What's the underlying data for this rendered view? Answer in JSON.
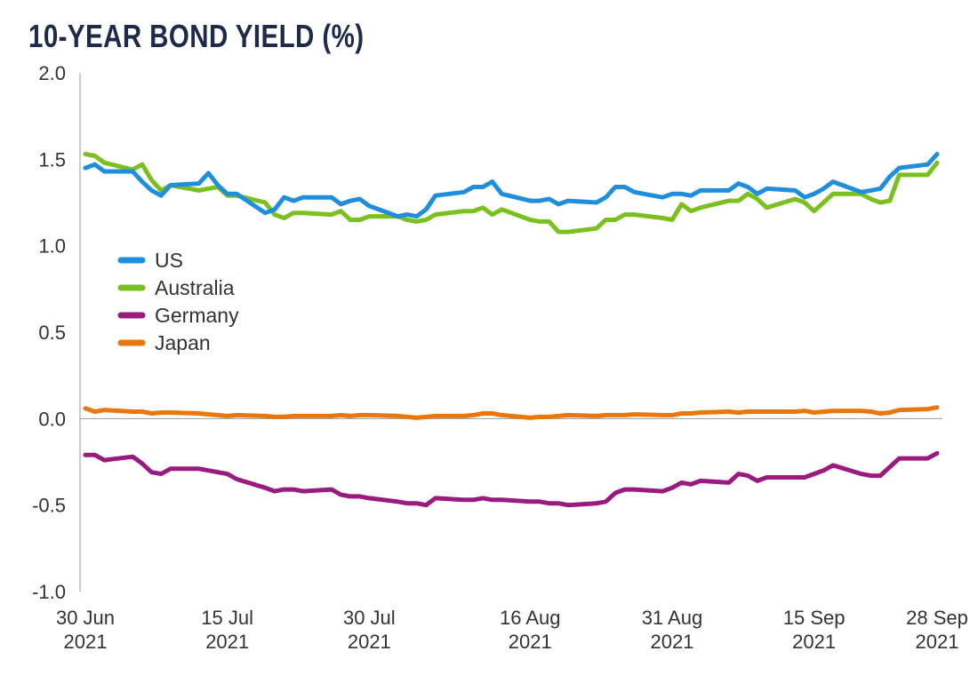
{
  "chart_data": {
    "type": "line",
    "title": "10-YEAR BOND YIELD (%)",
    "xlabel": "",
    "ylabel": "",
    "ylim": [
      -1.0,
      2.0
    ],
    "yticks": [
      "2.0",
      "1.5",
      "1.0",
      "0.5",
      "0.0",
      "-0.5",
      "-1.0"
    ],
    "ytick_values": [
      2.0,
      1.5,
      1.0,
      0.5,
      0.0,
      -0.5,
      -1.0
    ],
    "grid": false,
    "legend_position": "left-middle",
    "x": [
      "2021-06-30",
      "2021-07-01",
      "2021-07-02",
      "2021-07-05",
      "2021-07-06",
      "2021-07-07",
      "2021-07-08",
      "2021-07-09",
      "2021-07-12",
      "2021-07-13",
      "2021-07-14",
      "2021-07-15",
      "2021-07-16",
      "2021-07-19",
      "2021-07-20",
      "2021-07-21",
      "2021-07-22",
      "2021-07-23",
      "2021-07-26",
      "2021-07-27",
      "2021-07-28",
      "2021-07-29",
      "2021-07-30",
      "2021-08-02",
      "2021-08-03",
      "2021-08-04",
      "2021-08-05",
      "2021-08-06",
      "2021-08-09",
      "2021-08-10",
      "2021-08-11",
      "2021-08-12",
      "2021-08-13",
      "2021-08-16",
      "2021-08-17",
      "2021-08-18",
      "2021-08-19",
      "2021-08-20",
      "2021-08-23",
      "2021-08-24",
      "2021-08-25",
      "2021-08-26",
      "2021-08-27",
      "2021-08-30",
      "2021-08-31",
      "2021-09-01",
      "2021-09-02",
      "2021-09-03",
      "2021-09-06",
      "2021-09-07",
      "2021-09-08",
      "2021-09-09",
      "2021-09-10",
      "2021-09-13",
      "2021-09-14",
      "2021-09-15",
      "2021-09-16",
      "2021-09-17",
      "2021-09-20",
      "2021-09-21",
      "2021-09-22",
      "2021-09-23",
      "2021-09-24",
      "2021-09-27",
      "2021-09-28"
    ],
    "xticks": [
      {
        "date": "2021-06-30",
        "line1": "30 Jun",
        "line2": "2021"
      },
      {
        "date": "2021-07-15",
        "line1": "15 Jul",
        "line2": "2021"
      },
      {
        "date": "2021-07-30",
        "line1": "30 Jul",
        "line2": "2021"
      },
      {
        "date": "2021-08-16",
        "line1": "16 Aug",
        "line2": "2021"
      },
      {
        "date": "2021-08-31",
        "line1": "31 Aug",
        "line2": "2021"
      },
      {
        "date": "2021-09-15",
        "line1": "15 Sep",
        "line2": "2021"
      },
      {
        "date": "2021-09-28",
        "line1": "28 Sep",
        "line2": "2021"
      }
    ],
    "series": [
      {
        "name": "US",
        "color": "#1f8fdd",
        "values": [
          1.45,
          1.47,
          1.43,
          1.43,
          1.37,
          1.32,
          1.29,
          1.35,
          1.36,
          1.42,
          1.35,
          1.3,
          1.3,
          1.19,
          1.21,
          1.28,
          1.26,
          1.28,
          1.28,
          1.24,
          1.26,
          1.27,
          1.23,
          1.17,
          1.18,
          1.17,
          1.21,
          1.29,
          1.31,
          1.34,
          1.34,
          1.37,
          1.3,
          1.26,
          1.26,
          1.27,
          1.24,
          1.26,
          1.25,
          1.28,
          1.34,
          1.34,
          1.31,
          1.28,
          1.3,
          1.3,
          1.29,
          1.32,
          1.32,
          1.36,
          1.34,
          1.3,
          1.33,
          1.32,
          1.28,
          1.3,
          1.33,
          1.37,
          1.31,
          1.32,
          1.33,
          1.4,
          1.45,
          1.47,
          1.53
        ]
      },
      {
        "name": "Australia",
        "color": "#7ac01e",
        "values": [
          1.53,
          1.52,
          1.48,
          1.44,
          1.47,
          1.38,
          1.32,
          1.35,
          1.32,
          1.33,
          1.34,
          1.29,
          1.29,
          1.25,
          1.18,
          1.16,
          1.19,
          1.19,
          1.18,
          1.2,
          1.15,
          1.15,
          1.17,
          1.17,
          1.15,
          1.14,
          1.15,
          1.18,
          1.2,
          1.2,
          1.22,
          1.18,
          1.21,
          1.15,
          1.14,
          1.14,
          1.08,
          1.08,
          1.1,
          1.15,
          1.15,
          1.18,
          1.18,
          1.16,
          1.15,
          1.24,
          1.2,
          1.22,
          1.26,
          1.26,
          1.3,
          1.27,
          1.22,
          1.27,
          1.25,
          1.2,
          1.25,
          1.3,
          1.3,
          1.27,
          1.25,
          1.26,
          1.41,
          1.41,
          1.48
        ]
      },
      {
        "name": "Germany",
        "color": "#9a1a7e",
        "values": [
          -0.21,
          -0.21,
          -0.24,
          -0.22,
          -0.26,
          -0.31,
          -0.32,
          -0.29,
          -0.29,
          -0.3,
          -0.31,
          -0.32,
          -0.35,
          -0.4,
          -0.42,
          -0.41,
          -0.41,
          -0.42,
          -0.41,
          -0.44,
          -0.45,
          -0.45,
          -0.46,
          -0.48,
          -0.49,
          -0.49,
          -0.5,
          -0.46,
          -0.47,
          -0.47,
          -0.46,
          -0.47,
          -0.47,
          -0.48,
          -0.48,
          -0.49,
          -0.49,
          -0.5,
          -0.49,
          -0.48,
          -0.43,
          -0.41,
          -0.41,
          -0.42,
          -0.4,
          -0.37,
          -0.38,
          -0.36,
          -0.37,
          -0.32,
          -0.33,
          -0.36,
          -0.34,
          -0.34,
          -0.34,
          -0.32,
          -0.3,
          -0.27,
          -0.32,
          -0.33,
          -0.33,
          -0.28,
          -0.23,
          -0.23,
          -0.2
        ]
      },
      {
        "name": "Japan",
        "color": "#e8780c",
        "values": [
          0.06,
          0.04,
          0.05,
          0.04,
          0.04,
          0.03,
          0.035,
          0.035,
          0.03,
          0.025,
          0.02,
          0.015,
          0.02,
          0.015,
          0.01,
          0.01,
          0.015,
          0.015,
          0.015,
          0.02,
          0.015,
          0.02,
          0.02,
          0.015,
          0.01,
          0.005,
          0.01,
          0.015,
          0.015,
          0.02,
          0.03,
          0.03,
          0.02,
          0.005,
          0.01,
          0.01,
          0.015,
          0.02,
          0.015,
          0.02,
          0.02,
          0.02,
          0.025,
          0.02,
          0.02,
          0.03,
          0.03,
          0.035,
          0.04,
          0.035,
          0.04,
          0.04,
          0.04,
          0.04,
          0.045,
          0.035,
          0.04,
          0.045,
          0.045,
          0.04,
          0.03,
          0.035,
          0.05,
          0.055,
          0.065
        ]
      }
    ]
  }
}
